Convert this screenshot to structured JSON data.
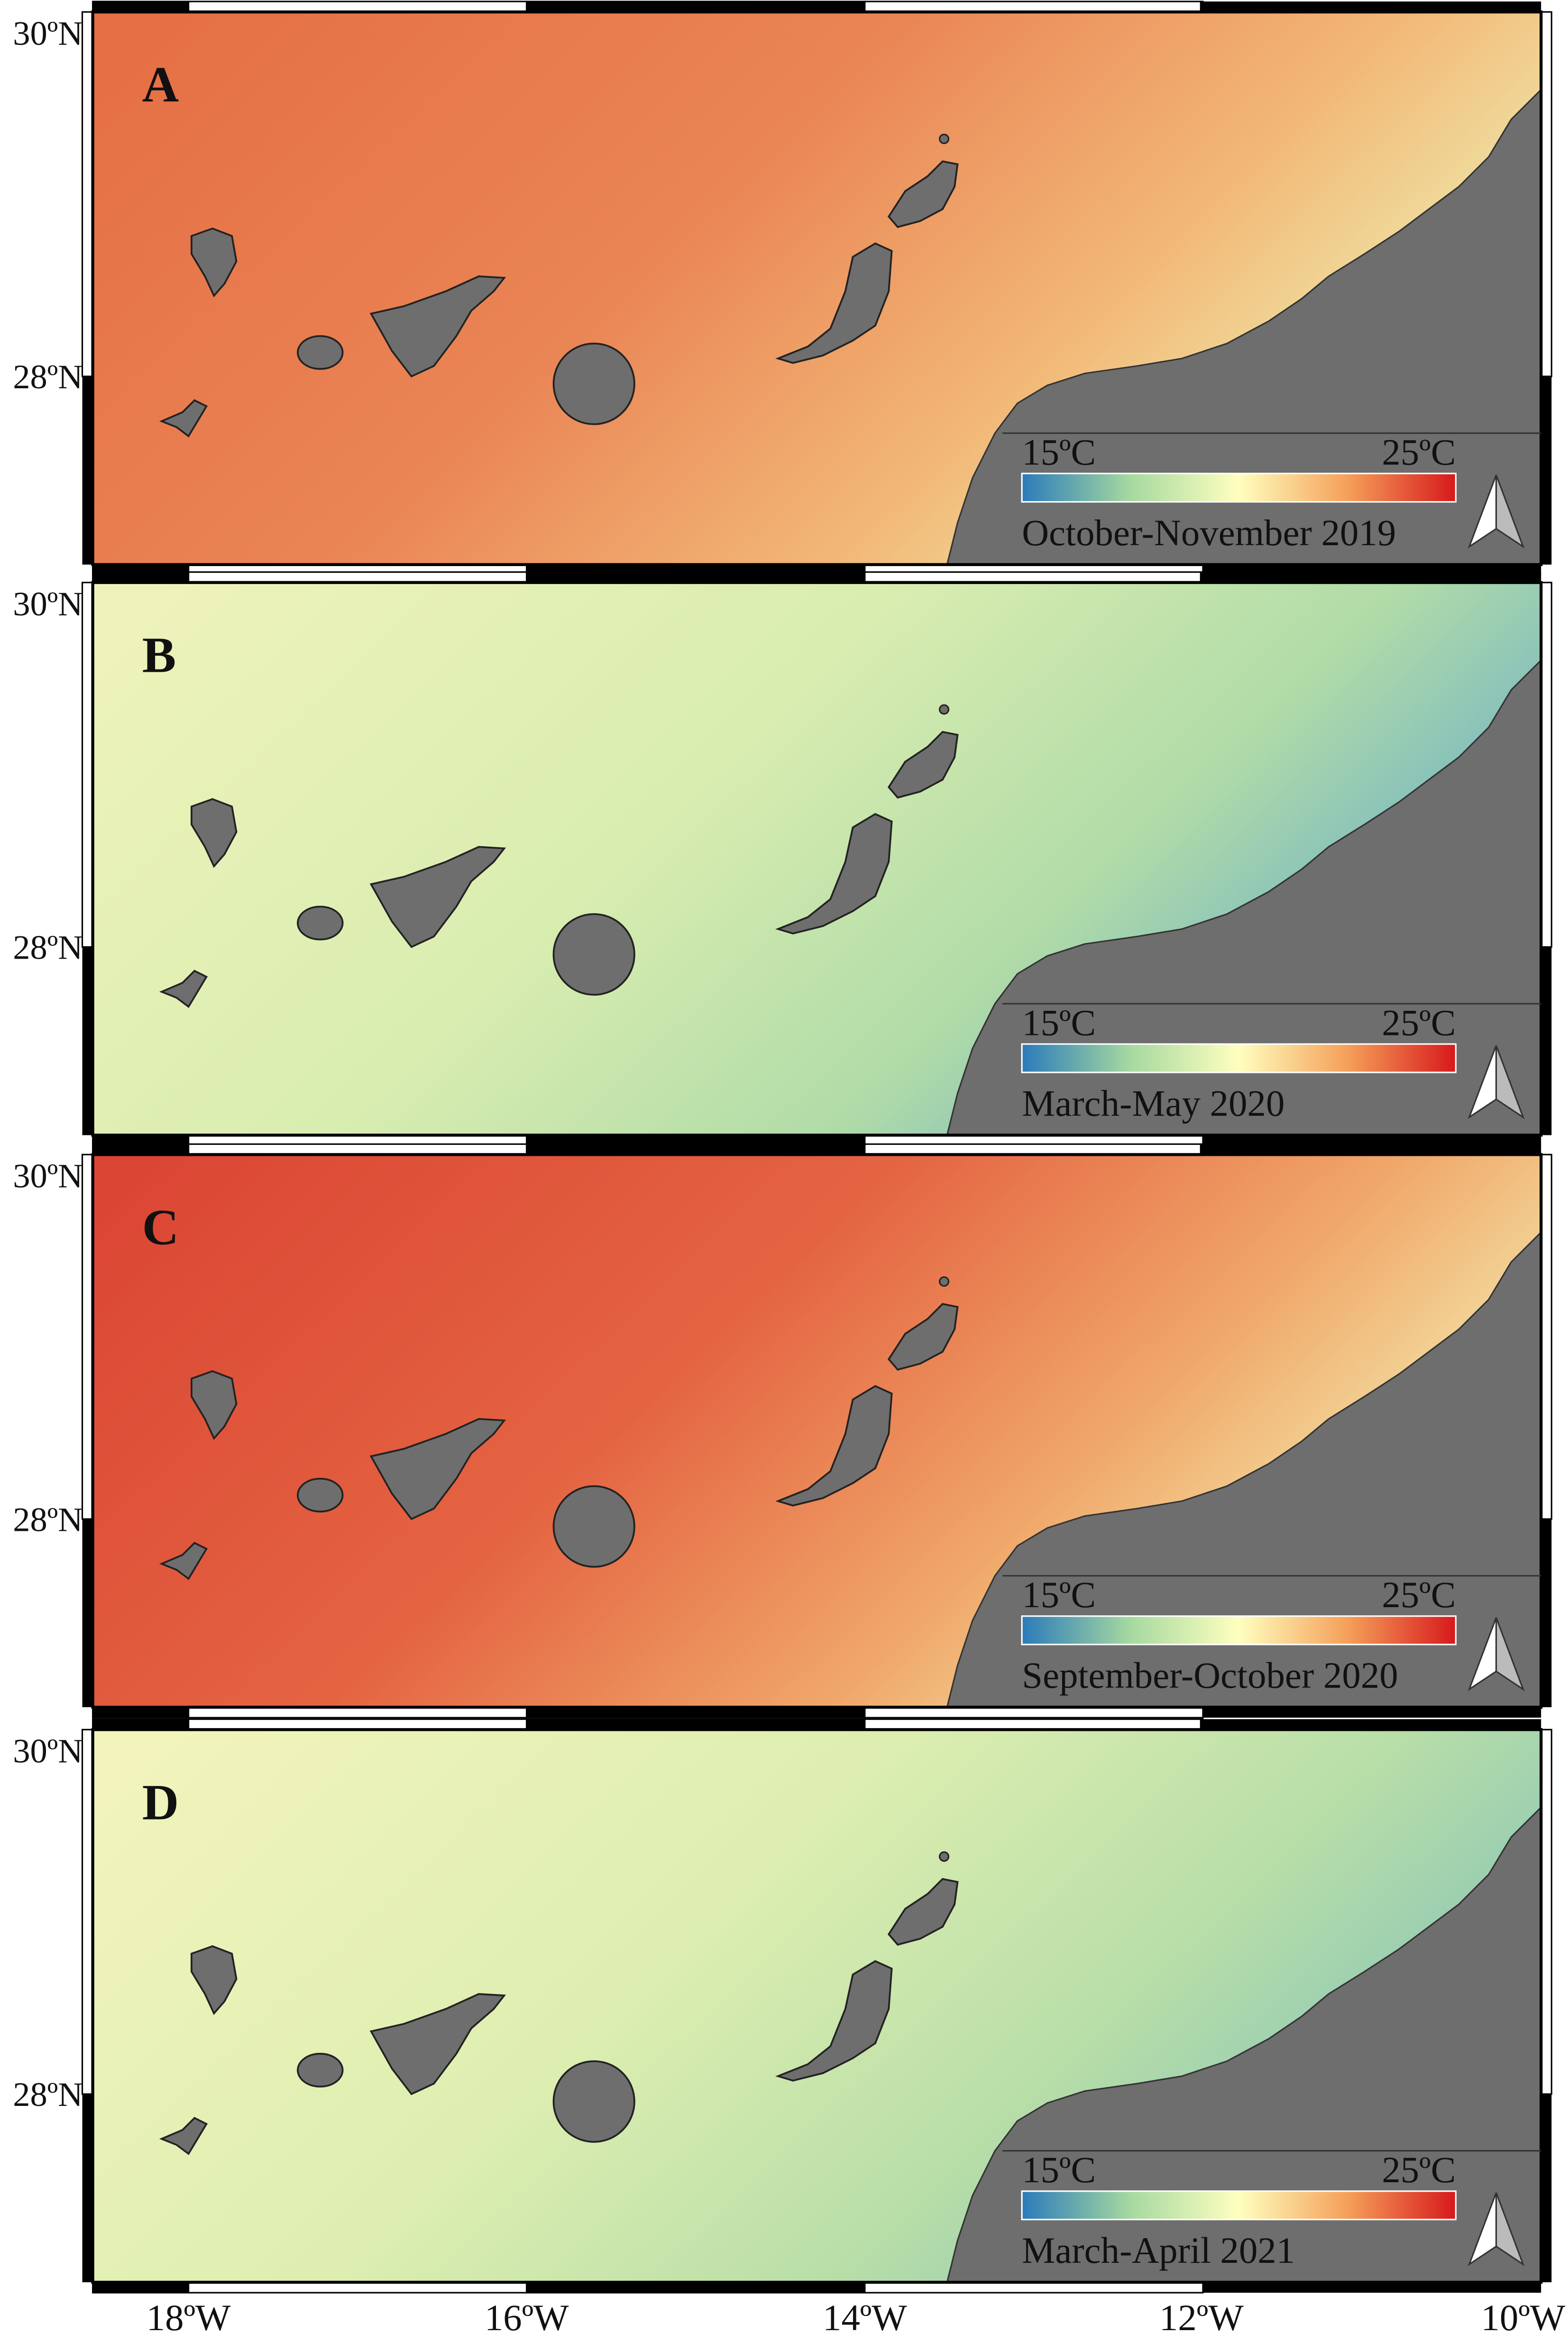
{
  "panels": [
    {
      "letter": "A",
      "period": "October-November 2019",
      "colorbar_min": "15ºC",
      "colorbar_max": "25ºC"
    },
    {
      "letter": "B",
      "period": "March-May 2020",
      "colorbar_min": "15ºC",
      "colorbar_max": "25ºC"
    },
    {
      "letter": "C",
      "period": "September-October 2020",
      "colorbar_min": "15ºC",
      "colorbar_max": "25ºC"
    },
    {
      "letter": "D",
      "period": "March-April 2021",
      "colorbar_min": "15ºC",
      "colorbar_max": "25ºC"
    }
  ],
  "latitude_labels": [
    "30ºN",
    "28ºN"
  ],
  "longitude_labels": [
    "18ºW",
    "16ºW",
    "14ºW",
    "12ºW",
    "10ºW"
  ]
}
